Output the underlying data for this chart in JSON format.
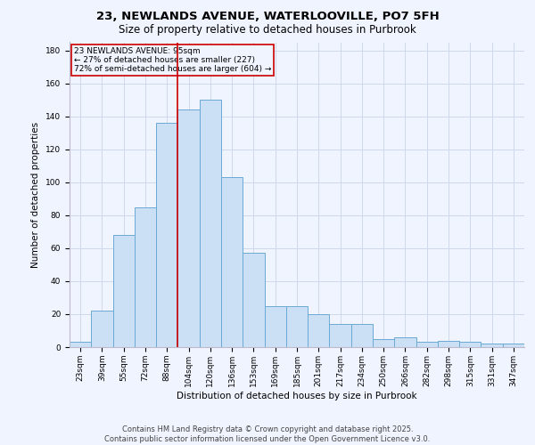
{
  "title_line1": "23, NEWLANDS AVENUE, WATERLOOVILLE, PO7 5FH",
  "title_line2": "Size of property relative to detached houses in Purbrook",
  "xlabel": "Distribution of detached houses by size in Purbrook",
  "ylabel": "Number of detached properties",
  "categories": [
    "23sqm",
    "39sqm",
    "55sqm",
    "72sqm",
    "88sqm",
    "104sqm",
    "120sqm",
    "136sqm",
    "153sqm",
    "169sqm",
    "185sqm",
    "201sqm",
    "217sqm",
    "234sqm",
    "250sqm",
    "266sqm",
    "282sqm",
    "298sqm",
    "315sqm",
    "331sqm",
    "347sqm"
  ],
  "values": [
    3,
    22,
    68,
    85,
    136,
    144,
    150,
    103,
    57,
    25,
    25,
    20,
    14,
    14,
    5,
    6,
    3,
    4,
    3,
    2,
    2
  ],
  "bar_color": "#cce0f5",
  "bar_edge_color": "#6aaad4",
  "vline_x": 4.5,
  "vline_color": "#cc0000",
  "annotation_text": "23 NEWLANDS AVENUE: 95sqm\n← 27% of detached houses are smaller (227)\n72% of semi-detached houses are larger (604) →",
  "annotation_box_color": "#cc0000",
  "ylim": [
    0,
    185
  ],
  "yticks": [
    0,
    20,
    40,
    60,
    80,
    100,
    120,
    140,
    160,
    180
  ],
  "background_color": "#f0f4ff",
  "grid_color": "#d0d8ee",
  "footer_line1": "Contains HM Land Registry data © Crown copyright and database right 2025.",
  "footer_line2": "Contains public sector information licensed under the Open Government Licence v3.0.",
  "title_fontsize": 9.5,
  "subtitle_fontsize": 8.5,
  "axis_label_fontsize": 7.5,
  "tick_fontsize": 6.5,
  "annotation_fontsize": 6.5,
  "footer_fontsize": 6.0
}
